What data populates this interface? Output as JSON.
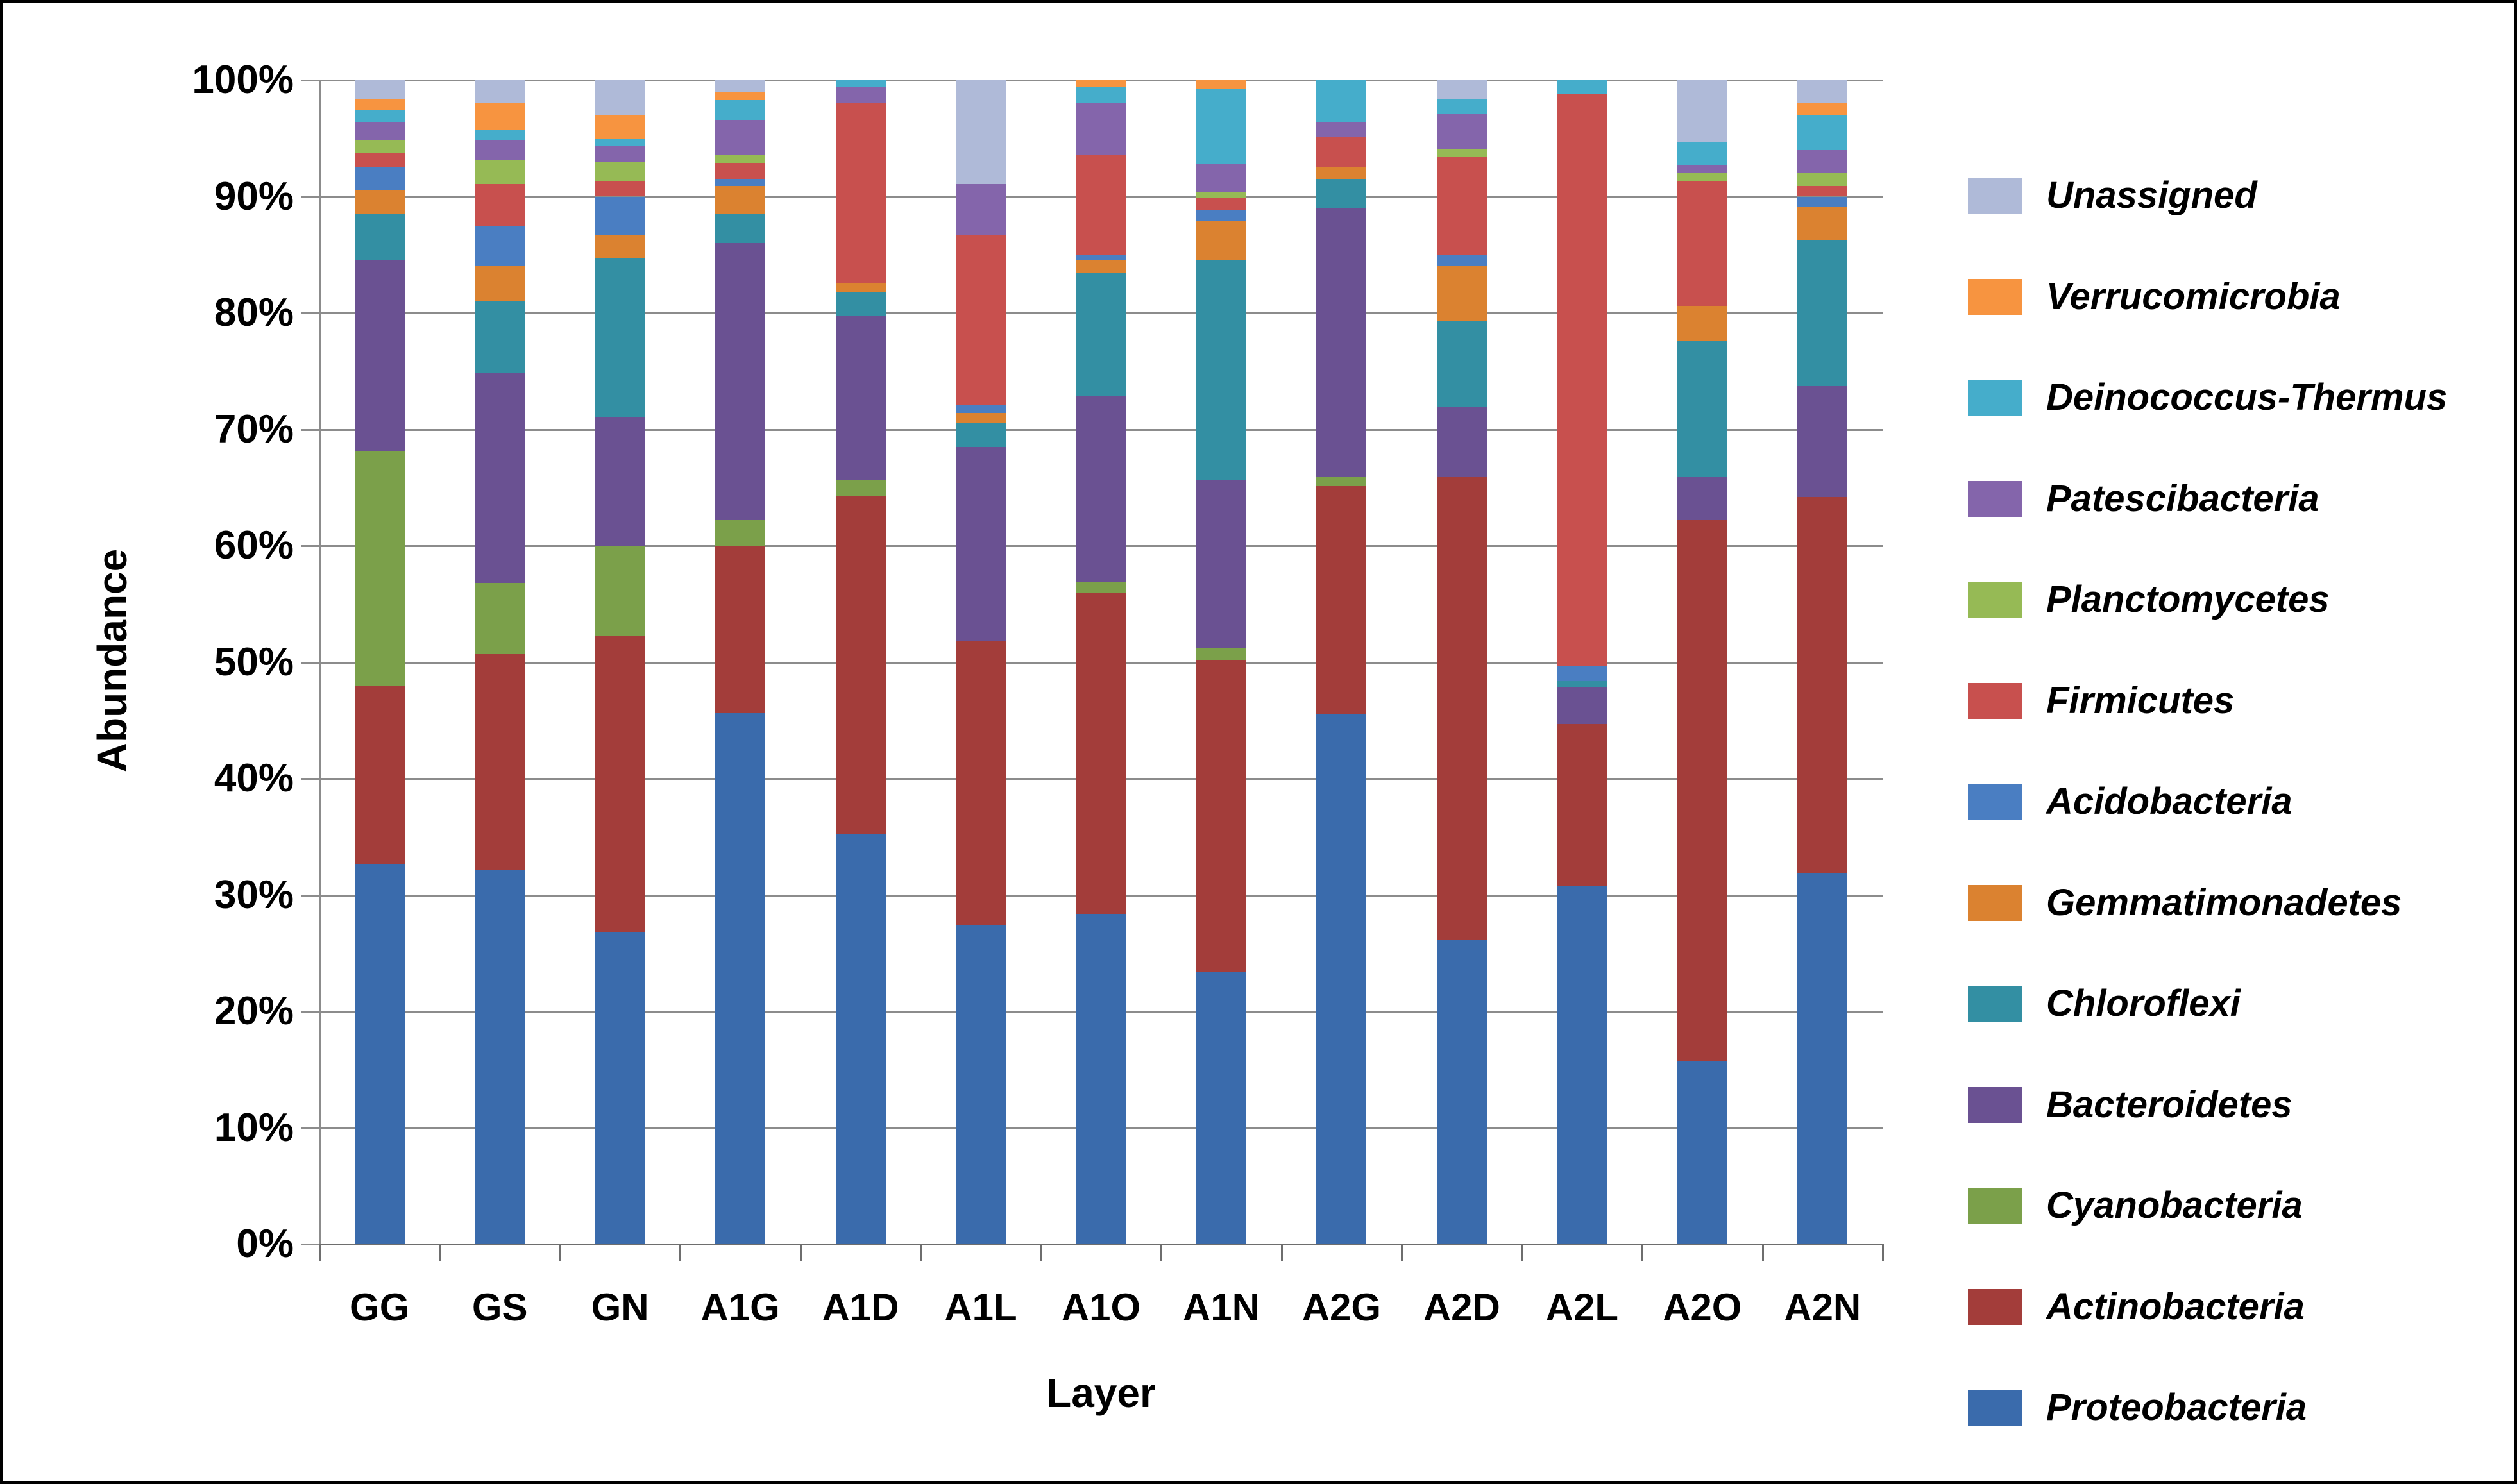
{
  "figure": {
    "background": "#ffffff",
    "border_color": "#000000",
    "gridline_color": "#8c8c8c",
    "axis_color": "#6e6e6e"
  },
  "chart_data": {
    "type": "bar",
    "subtype": "stacked-100-percent",
    "title": "",
    "xlabel": "Layer",
    "ylabel": "Abundance",
    "ylim": [
      0,
      100
    ],
    "grid": true,
    "legend_position": "right",
    "y_ticks": [
      "0%",
      "10%",
      "20%",
      "30%",
      "40%",
      "50%",
      "60%",
      "70%",
      "80%",
      "90%",
      "100%"
    ],
    "categories": [
      "GG",
      "GS",
      "GN",
      "A1G",
      "A1D",
      "A1L",
      "A1O",
      "A1N",
      "A2G",
      "A2D",
      "A2L",
      "A2O",
      "A2N"
    ],
    "series": [
      {
        "name": "Proteobacteria",
        "color": "#3a6bac",
        "values": [
          32.6,
          32.2,
          26.8,
          45.6,
          35.2,
          27.4,
          28.4,
          23.4,
          45.5,
          26.1,
          30.8,
          15.7,
          31.9
        ]
      },
      {
        "name": "Actinobacteria",
        "color": "#a33d3a",
        "values": [
          15.4,
          18.5,
          25.5,
          14.4,
          29.1,
          24.4,
          27.5,
          26.8,
          19.6,
          39.8,
          13.9,
          46.5,
          32.3
        ]
      },
      {
        "name": "Cyanobacteria",
        "color": "#7ba04a",
        "values": [
          20.1,
          6.1,
          7.7,
          2.2,
          1.3,
          0,
          1.0,
          1.0,
          0.8,
          0,
          0,
          0,
          0
        ]
      },
      {
        "name": "Bacteroidetes",
        "color": "#6a5192",
        "values": [
          16.5,
          18.1,
          11.0,
          23.8,
          14.2,
          16.7,
          16.0,
          14.4,
          23.1,
          6.0,
          3.2,
          3.7,
          9.5
        ]
      },
      {
        "name": "Chloroflexi",
        "color": "#338fa3",
        "values": [
          3.9,
          6.1,
          13.7,
          2.5,
          2.0,
          2.1,
          10.5,
          18.9,
          2.5,
          7.4,
          0.5,
          11.7,
          12.6
        ]
      },
      {
        "name": "Gemmatimonadetes",
        "color": "#db8230",
        "values": [
          2.0,
          3.0,
          2.0,
          2.4,
          0.8,
          0.8,
          1.2,
          3.4,
          1.0,
          4.7,
          0,
          3.0,
          2.8
        ]
      },
      {
        "name": "Acidobacteria",
        "color": "#4a7ec2",
        "values": [
          2.0,
          3.5,
          3.3,
          0.6,
          0,
          0.7,
          0.4,
          0.9,
          0,
          1.0,
          1.3,
          0,
          0.9
        ]
      },
      {
        "name": "Firmicutes",
        "color": "#c8504e",
        "values": [
          1.3,
          3.6,
          1.3,
          1.4,
          15.4,
          14.6,
          8.6,
          1.1,
          2.6,
          8.4,
          49.1,
          10.7,
          0.9
        ]
      },
      {
        "name": "Planctomycetes",
        "color": "#96ba55",
        "values": [
          1.1,
          2.0,
          1.7,
          0.7,
          0,
          0,
          0,
          0.5,
          0,
          0.7,
          0,
          0.7,
          1.1
        ]
      },
      {
        "name": "Patescibacteria",
        "color": "#8465ab",
        "values": [
          1.5,
          1.8,
          1.3,
          3.0,
          1.4,
          4.4,
          4.4,
          2.4,
          1.3,
          3.0,
          0,
          0.7,
          2.0
        ]
      },
      {
        "name": "Deinococcus-Thermus",
        "color": "#45adcb",
        "values": [
          1.0,
          0.8,
          0.7,
          1.7,
          0.6,
          0,
          1.4,
          6.5,
          3.6,
          1.3,
          1.2,
          2.0,
          3.0
        ]
      },
      {
        "name": "Verrucomicrobia",
        "color": "#f79440",
        "values": [
          1.0,
          2.3,
          2.0,
          0.7,
          0,
          0,
          0.6,
          0.7,
          0,
          0,
          0,
          0,
          1.0
        ]
      },
      {
        "name": "Unassigned",
        "color": "#afbad8",
        "values": [
          1.6,
          2.0,
          3.0,
          1.0,
          0,
          8.9,
          0,
          0,
          0,
          1.6,
          0,
          5.3,
          2.0
        ]
      }
    ],
    "legend_order_top_to_bottom": [
      "Unassigned",
      "Verrucomicrobia",
      "Deinococcus-Thermus",
      "Patescibacteria",
      "Planctomycetes",
      "Firmicutes",
      "Acidobacteria",
      "Gemmatimonadetes",
      "Chloroflexi",
      "Bacteroidetes",
      "Cyanobacteria",
      "Actinobacteria",
      "Proteobacteria"
    ]
  }
}
